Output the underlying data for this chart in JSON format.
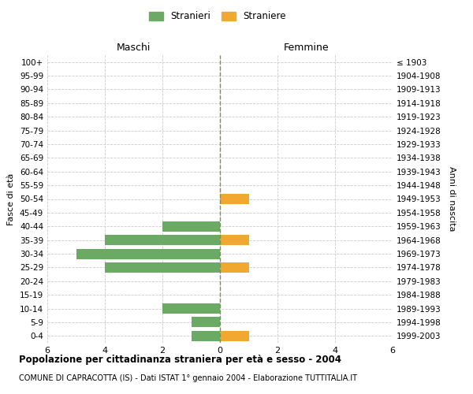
{
  "age_groups": [
    "0-4",
    "5-9",
    "10-14",
    "15-19",
    "20-24",
    "25-29",
    "30-34",
    "35-39",
    "40-44",
    "45-49",
    "50-54",
    "55-59",
    "60-64",
    "65-69",
    "70-74",
    "75-79",
    "80-84",
    "85-89",
    "90-94",
    "95-99",
    "100+"
  ],
  "birth_years": [
    "1999-2003",
    "1994-1998",
    "1989-1993",
    "1984-1988",
    "1979-1983",
    "1974-1978",
    "1969-1973",
    "1964-1968",
    "1959-1963",
    "1954-1958",
    "1949-1953",
    "1944-1948",
    "1939-1943",
    "1934-1938",
    "1929-1933",
    "1924-1928",
    "1919-1923",
    "1914-1918",
    "1909-1913",
    "1904-1908",
    "≤ 1903"
  ],
  "maschi": [
    1,
    1,
    2,
    0,
    0,
    4,
    5,
    4,
    2,
    0,
    0,
    0,
    0,
    0,
    0,
    0,
    0,
    0,
    0,
    0,
    0
  ],
  "femmine": [
    1,
    0,
    0,
    0,
    0,
    1,
    0,
    1,
    0,
    0,
    1,
    0,
    0,
    0,
    0,
    0,
    0,
    0,
    0,
    0,
    0
  ],
  "maschi_color": "#6aaa64",
  "femmine_color": "#f0a830",
  "title": "Popolazione per cittadinanza straniera per età e sesso - 2004",
  "subtitle": "COMUNE DI CAPRACOTTA (IS) - Dati ISTAT 1° gennaio 2004 - Elaborazione TUTTITALIA.IT",
  "ylabel_left": "Fasce di età",
  "ylabel_right": "Anni di nascita",
  "xlabel_left": "Maschi",
  "xlabel_right": "Femmine",
  "legend_maschi": "Stranieri",
  "legend_femmine": "Straniere",
  "xlim": 6,
  "background_color": "#ffffff",
  "grid_color": "#cccccc"
}
